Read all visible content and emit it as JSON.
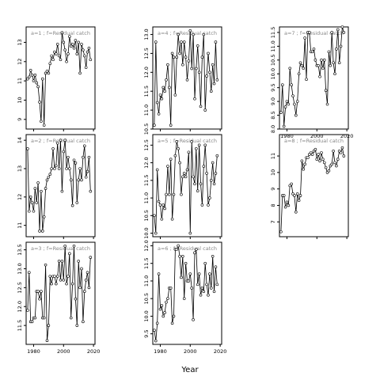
{
  "figure": {
    "xlabel": "Year"
  },
  "chart_data": [
    {
      "type": "line",
      "panel_label": "a=1 ;  f=Residual catch",
      "xlim": [
        1975,
        2021
      ],
      "ylim": [
        8.5,
        13.8
      ],
      "yticks": [
        9,
        10,
        11,
        12,
        13
      ],
      "xticks": [
        1980,
        2000,
        2020
      ],
      "x": [
        1976,
        1977,
        1978,
        1979,
        1980,
        1981,
        1982,
        1983,
        1984,
        1985,
        1986,
        1987,
        1988,
        1989,
        1990,
        1991,
        1992,
        1993,
        1994,
        1995,
        1996,
        1997,
        1998,
        1999,
        2000,
        2001,
        2002,
        2003,
        2004,
        2005,
        2006,
        2007,
        2008,
        2009,
        2010,
        2011,
        2012,
        2013,
        2014,
        2015,
        2016,
        2017,
        2018
      ],
      "series": [
        {
          "values": [
            11.1,
            11.2,
            11.55,
            11.3,
            11.0,
            11.3,
            10.9,
            10.7,
            9.9,
            8.9,
            11.1,
            8.7,
            11.4,
            11.5,
            11.4,
            11.9,
            12.3,
            12.1,
            12.5,
            12.4,
            12.9,
            12.3,
            12.1,
            13.5,
            13.0,
            12.6,
            12.0,
            12.4,
            13.3,
            12.8,
            12.9,
            12.7,
            13.1,
            12.4,
            13.0,
            11.4,
            12.9,
            12.6,
            12.3,
            11.7,
            12.5,
            12.7,
            12.1
          ]
        }
      ]
    },
    {
      "type": "line",
      "panel_label": "a=2 ;  f=Residual catch",
      "xlim": [
        1975,
        2021
      ],
      "ylim": [
        10.6,
        14.2
      ],
      "yticks": [
        11.0,
        12.0,
        13.0,
        14.0
      ],
      "xticks": [
        1980,
        2000,
        2020
      ],
      "x": [
        1976,
        1977,
        1978,
        1979,
        1980,
        1981,
        1982,
        1983,
        1984,
        1985,
        1986,
        1987,
        1988,
        1989,
        1990,
        1991,
        1992,
        1993,
        1994,
        1995,
        1996,
        1997,
        1998,
        1999,
        2000,
        2001,
        2002,
        2003,
        2004,
        2005,
        2006,
        2007,
        2008,
        2009,
        2010,
        2011,
        2012,
        2013,
        2014,
        2015,
        2016,
        2017,
        2018
      ],
      "series": [
        {
          "values": [
            13.7,
            11.5,
            12.0,
            11.8,
            11.5,
            12.3,
            11.8,
            12.5,
            10.8,
            12.2,
            10.8,
            11.3,
            12.3,
            12.6,
            12.7,
            12.8,
            13.0,
            13.7,
            13.0,
            13.1,
            13.9,
            13.0,
            14.0,
            12.2,
            13.6,
            14.0,
            13.0,
            13.4,
            13.0,
            12.6,
            11.7,
            13.3,
            13.2,
            11.8,
            12.6,
            13.0,
            12.6,
            13.4,
            13.8,
            12.7,
            12.9,
            13.4,
            12.2
          ]
        }
      ]
    },
    {
      "type": "line",
      "panel_label": "a=3 ;  f=Residual catch",
      "xlim": [
        1975,
        2021
      ],
      "ylim": [
        11.0,
        13.7
      ],
      "yticks": [
        11.5,
        12.0,
        12.5,
        13.0,
        13.5
      ],
      "xticks": [
        1980,
        2000,
        2020
      ],
      "x": [
        1976,
        1977,
        1978,
        1979,
        1980,
        1981,
        1982,
        1983,
        1984,
        1985,
        1986,
        1987,
        1988,
        1989,
        1990,
        1991,
        1992,
        1993,
        1994,
        1995,
        1996,
        1997,
        1998,
        1999,
        2000,
        2001,
        2002,
        2003,
        2004,
        2005,
        2006,
        2007,
        2008,
        2009,
        2010,
        2011,
        2012,
        2013,
        2014,
        2015,
        2016,
        2017,
        2018
      ],
      "series": [
        {
          "values": [
            11.9,
            12.9,
            11.6,
            11.6,
            11.7,
            11.7,
            12.4,
            12.4,
            12.2,
            12.4,
            11.7,
            11.7,
            13.1,
            11.1,
            11.5,
            12.8,
            12.6,
            12.8,
            12.8,
            12.6,
            12.8,
            13.2,
            12.7,
            13.2,
            12.7,
            13.6,
            12.6,
            12.8,
            13.4,
            11.7,
            12.6,
            13.6,
            12.2,
            11.5,
            13.2,
            12.5,
            13.0,
            11.6,
            12.4,
            12.7,
            12.9,
            12.5,
            13.3
          ]
        }
      ]
    },
    {
      "type": "line",
      "panel_label": "a=4 ;  f=Residual catch",
      "xlim": [
        1975,
        2021
      ],
      "ylim": [
        10.5,
        13.2
      ],
      "yticks": [
        10.5,
        11.0,
        11.5,
        12.0,
        12.5,
        13.0
      ],
      "xticks": [
        1980,
        2000,
        2020
      ],
      "x": [
        1976,
        1977,
        1978,
        1979,
        1980,
        1981,
        1982,
        1983,
        1984,
        1985,
        1986,
        1987,
        1988,
        1989,
        1990,
        1991,
        1992,
        1993,
        1994,
        1995,
        1996,
        1997,
        1998,
        1999,
        2000,
        2001,
        2002,
        2003,
        2004,
        2005,
        2006,
        2007,
        2008,
        2009,
        2010,
        2011,
        2012,
        2013,
        2014,
        2015,
        2016,
        2017,
        2018
      ],
      "series": [
        {
          "values": [
            10.6,
            12.8,
            11.2,
            10.9,
            11.4,
            11.3,
            11.6,
            11.5,
            11.8,
            12.2,
            11.6,
            10.6,
            12.5,
            12.4,
            11.4,
            12.4,
            13.0,
            12.5,
            12.8,
            12.2,
            12.8,
            12.4,
            11.8,
            12.3,
            13.1,
            12.1,
            13.0,
            11.3,
            12.1,
            12.7,
            12.0,
            11.1,
            12.4,
            13.0,
            11.0,
            11.9,
            12.5,
            12.0,
            11.5,
            12.2,
            11.7,
            12.8,
            11.8
          ]
        }
      ]
    },
    {
      "type": "line",
      "panel_label": "a=5 ;  f=Residual catch",
      "xlim": [
        1975,
        2021
      ],
      "ylim": [
        9.9,
        12.8
      ],
      "yticks": [
        10.0,
        10.5,
        11.0,
        11.5,
        12.0,
        12.5
      ],
      "xticks": [
        1980,
        2000,
        2020
      ],
      "x": [
        1976,
        1977,
        1978,
        1979,
        1980,
        1981,
        1982,
        1983,
        1984,
        1985,
        1986,
        1987,
        1988,
        1989,
        1990,
        1991,
        1992,
        1993,
        1994,
        1995,
        1996,
        1997,
        1998,
        1999,
        2000,
        2001,
        2002,
        2003,
        2004,
        2005,
        2006,
        2007,
        2008,
        2009,
        2010,
        2011,
        2012,
        2013,
        2014,
        2015,
        2016,
        2017,
        2018
      ],
      "series": [
        {
          "values": [
            10.5,
            10.0,
            11.8,
            10.9,
            10.8,
            10.4,
            10.8,
            10.7,
            11.1,
            11.9,
            11.1,
            12.1,
            10.4,
            11.1,
            12.2,
            12.6,
            12.4,
            12.0,
            11.1,
            11.6,
            11.7,
            11.6,
            11.8,
            12.3,
            10.0,
            12.6,
            11.6,
            11.4,
            12.4,
            11.2,
            12.5,
            11.4,
            10.8,
            11.9,
            12.5,
            11.7,
            10.8,
            11.0,
            11.5,
            12.0,
            11.4,
            11.7,
            12.2
          ]
        }
      ]
    },
    {
      "type": "line",
      "panel_label": "a=6 ;  f=Residual catch",
      "xlim": [
        1975,
        2021
      ],
      "ylim": [
        9.2,
        12.1
      ],
      "yticks": [
        9.5,
        10.0,
        10.5,
        11.0,
        11.5,
        12.0
      ],
      "xticks": [
        1980,
        2000,
        2020
      ],
      "x": [
        1976,
        1977,
        1978,
        1979,
        1980,
        1981,
        1982,
        1983,
        1984,
        1985,
        1986,
        1987,
        1988,
        1989,
        1990,
        1991,
        1992,
        1993,
        1994,
        1995,
        1996,
        1997,
        1998,
        1999,
        2000,
        2001,
        2002,
        2003,
        2004,
        2005,
        2006,
        2007,
        2008,
        2009,
        2010,
        2011,
        2012,
        2013,
        2014,
        2015,
        2016,
        2017,
        2018
      ],
      "series": [
        {
          "values": [
            9.6,
            9.3,
            9.8,
            11.2,
            10.2,
            10.3,
            10.0,
            10.1,
            10.4,
            10.5,
            10.8,
            10.8,
            9.8,
            10.0,
            11.9,
            11.9,
            12.0,
            11.7,
            11.1,
            11.7,
            10.5,
            11.5,
            11.0,
            11.0,
            11.2,
            10.8,
            9.9,
            11.8,
            11.9,
            10.9,
            11.2,
            10.6,
            10.8,
            10.7,
            11.5,
            10.9,
            10.6,
            11.2,
            10.8,
            11.7,
            10.7,
            11.4,
            10.9
          ]
        }
      ]
    },
    {
      "type": "line",
      "panel_label": "a=7 ;  f=Residual catch",
      "xlim": [
        1975,
        2021
      ],
      "ylim": [
        8.0,
        11.7
      ],
      "yticks": [
        8.0,
        8.5,
        9.0,
        9.5,
        10.0,
        10.5,
        11.0,
        11.5
      ],
      "xticks": [
        1980,
        2000,
        2020
      ],
      "x": [
        1976,
        1977,
        1978,
        1979,
        1980,
        1981,
        1982,
        1983,
        1984,
        1985,
        1986,
        1987,
        1988,
        1989,
        1990,
        1991,
        1992,
        1993,
        1994,
        1995,
        1996,
        1997,
        1998,
        1999,
        2000,
        2001,
        2002,
        2003,
        2004,
        2005,
        2006,
        2007,
        2008,
        2009,
        2010,
        2011,
        2012,
        2013,
        2014,
        2015,
        2016,
        2017,
        2018
      ],
      "series": [
        {
          "values": [
            8.6,
            9.6,
            8.1,
            8.8,
            9.0,
            8.9,
            10.2,
            9.6,
            9.2,
            8.9,
            8.5,
            9.0,
            10.0,
            10.4,
            10.3,
            10.2,
            11.3,
            9.8,
            11.5,
            11.5,
            10.8,
            10.8,
            10.9,
            10.5,
            10.3,
            10.3,
            9.9,
            10.5,
            10.2,
            10.5,
            9.4,
            8.9,
            10.8,
            10.3,
            11.5,
            10.4,
            10.0,
            10.9,
            11.6,
            10.4,
            11.0,
            11.7,
            11.5
          ]
        }
      ]
    },
    {
      "type": "line",
      "panel_label": "a=8 ;  f=Residual catch",
      "xlim": [
        1975,
        2021
      ],
      "ylim": [
        6.1,
        12.3
      ],
      "yticks": [
        7,
        8,
        9,
        10,
        11
      ],
      "xticks": [
        1980,
        2000,
        2020
      ],
      "x": [
        1976,
        1977,
        1978,
        1979,
        1980,
        1981,
        1982,
        1983,
        1984,
        1985,
        1986,
        1987,
        1988,
        1989,
        1990,
        1991,
        1992,
        1993,
        1994,
        1995,
        1996,
        1997,
        1998,
        1999,
        2000,
        2001,
        2002,
        2003,
        2004,
        2005,
        2006,
        2007,
        2008,
        2009,
        2010,
        2011,
        2012,
        2013,
        2014,
        2015,
        2016,
        2017,
        2018
      ],
      "series": [
        {
          "values": [
            6.4,
            8.6,
            8.6,
            7.9,
            8.2,
            8.0,
            9.2,
            9.3,
            8.7,
            8.6,
            7.6,
            8.7,
            8.3,
            8.6,
            10.7,
            10.2,
            10.5,
            10.9,
            10.9,
            11.1,
            11.2,
            11.1,
            11.3,
            11.4,
            10.8,
            11.1,
            10.7,
            11.2,
            10.8,
            10.6,
            10.3,
            10.0,
            10.1,
            10.4,
            10.5,
            11.3,
            10.6,
            10.4,
            10.8,
            11.3,
            11.2,
            11.5,
            11.0
          ]
        }
      ]
    }
  ]
}
